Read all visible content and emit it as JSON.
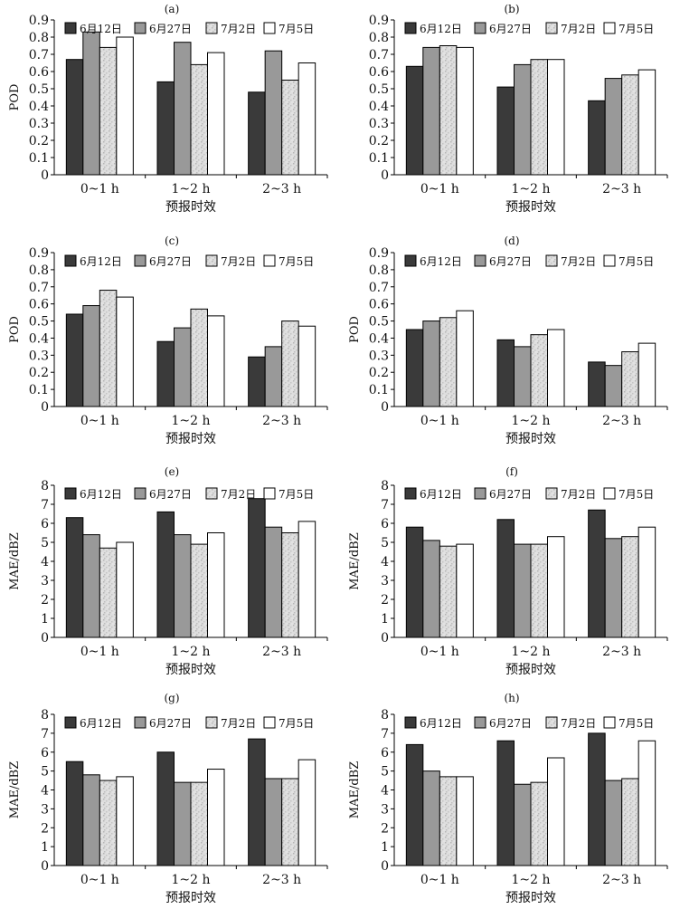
{
  "legend_labels": [
    "6月12日",
    "6月27日",
    "7月2日",
    "7月5日"
  ],
  "categories": [
    "0~1 h",
    "1~2 h",
    "2~3 h"
  ],
  "xlabel": "预报时效",
  "series_colors": [
    "#3a3a3a",
    "#999999",
    "#d9d9d9",
    "#ffffff"
  ],
  "chart_data": [
    {
      "panel": "(a)",
      "type": "bar",
      "ylabel": "POD",
      "ylim": [
        0,
        0.9
      ],
      "yticks": [
        "0",
        "0.1",
        "0.2",
        "0.3",
        "0.4",
        "0.5",
        "0.6",
        "0.7",
        "0.8",
        "0.9"
      ],
      "categories": [
        "0~1 h",
        "1~2 h",
        "2~3 h"
      ],
      "xlabel": "预报时效",
      "series": [
        {
          "name": "6月12日",
          "values": [
            0.67,
            0.54,
            0.48
          ]
        },
        {
          "name": "6月27日",
          "values": [
            0.83,
            0.77,
            0.72
          ]
        },
        {
          "name": "7月2日",
          "values": [
            0.74,
            0.64,
            0.55
          ]
        },
        {
          "name": "7月5日",
          "values": [
            0.8,
            0.71,
            0.65
          ]
        }
      ]
    },
    {
      "panel": "(b)",
      "type": "bar",
      "ylabel": "",
      "ylim": [
        0,
        0.9
      ],
      "yticks": [
        "0",
        "0.1",
        "0.2",
        "0.3",
        "0.4",
        "0.5",
        "0.6",
        "0.7",
        "0.8",
        "0.9"
      ],
      "categories": [
        "0~1 h",
        "1~2 h",
        "2~3 h"
      ],
      "xlabel": "预报时效",
      "series": [
        {
          "name": "6月12日",
          "values": [
            0.63,
            0.51,
            0.43
          ]
        },
        {
          "name": "6月27日",
          "values": [
            0.74,
            0.64,
            0.56
          ]
        },
        {
          "name": "7月2日",
          "values": [
            0.75,
            0.67,
            0.58
          ]
        },
        {
          "name": "7月5日",
          "values": [
            0.74,
            0.67,
            0.61
          ]
        }
      ]
    },
    {
      "panel": "(c)",
      "type": "bar",
      "ylabel": "POD",
      "ylim": [
        0,
        0.9
      ],
      "yticks": [
        "0",
        "0.1",
        "0.2",
        "0.3",
        "0.4",
        "0.5",
        "0.6",
        "0.7",
        "0.8",
        "0.9"
      ],
      "categories": [
        "0~1 h",
        "1~2 h",
        "2~3 h"
      ],
      "xlabel": "预报时效",
      "series": [
        {
          "name": "6月12日",
          "values": [
            0.54,
            0.38,
            0.29
          ]
        },
        {
          "name": "6月27日",
          "values": [
            0.59,
            0.46,
            0.35
          ]
        },
        {
          "name": "7月2日",
          "values": [
            0.68,
            0.57,
            0.5
          ]
        },
        {
          "name": "7月5日",
          "values": [
            0.64,
            0.53,
            0.47
          ]
        }
      ]
    },
    {
      "panel": "(d)",
      "type": "bar",
      "ylabel": "POD",
      "ylim": [
        0,
        0.9
      ],
      "yticks": [
        "0",
        "0.1",
        "0.2",
        "0.3",
        "0.4",
        "0.5",
        "0.6",
        "0.7",
        "0.8",
        "0.9"
      ],
      "categories": [
        "0~1 h",
        "1~2 h",
        "2~3 h"
      ],
      "xlabel": "预报时效",
      "series": [
        {
          "name": "6月12日",
          "values": [
            0.45,
            0.39,
            0.26
          ]
        },
        {
          "name": "6月27日",
          "values": [
            0.5,
            0.35,
            0.24
          ]
        },
        {
          "name": "7月2日",
          "values": [
            0.52,
            0.42,
            0.32
          ]
        },
        {
          "name": "7月5日",
          "values": [
            0.56,
            0.45,
            0.37
          ]
        }
      ]
    },
    {
      "panel": "(e)",
      "type": "bar",
      "ylabel": "MAE/dBZ",
      "ylim": [
        0,
        8
      ],
      "yticks": [
        "0",
        "1",
        "2",
        "3",
        "4",
        "5",
        "6",
        "7",
        "8"
      ],
      "categories": [
        "0~1 h",
        "1~2 h",
        "2~3 h"
      ],
      "xlabel": "预报时效",
      "series": [
        {
          "name": "6月12日",
          "values": [
            6.3,
            6.6,
            7.3
          ]
        },
        {
          "name": "6月27日",
          "values": [
            5.4,
            5.4,
            5.8
          ]
        },
        {
          "name": "7月2日",
          "values": [
            4.7,
            4.9,
            5.5
          ]
        },
        {
          "name": "7月5日",
          "values": [
            5.0,
            5.5,
            6.1
          ]
        }
      ]
    },
    {
      "panel": "(f)",
      "type": "bar",
      "ylabel": "MAE/dBZ",
      "ylim": [
        0,
        8
      ],
      "yticks": [
        "0",
        "1",
        "2",
        "3",
        "4",
        "5",
        "6",
        "7",
        "8"
      ],
      "categories": [
        "0~1 h",
        "1~2 h",
        "2~3 h"
      ],
      "xlabel": "预报时效",
      "series": [
        {
          "name": "6月12日",
          "values": [
            5.8,
            6.2,
            6.7
          ]
        },
        {
          "name": "6月27日",
          "values": [
            5.1,
            4.9,
            5.2
          ]
        },
        {
          "name": "7月2日",
          "values": [
            4.8,
            4.9,
            5.3
          ]
        },
        {
          "name": "7月5日",
          "values": [
            4.9,
            5.3,
            5.8
          ]
        }
      ]
    },
    {
      "panel": "(g)",
      "type": "bar",
      "ylabel": "MAE/dBZ",
      "ylim": [
        0,
        8
      ],
      "yticks": [
        "0",
        "1",
        "2",
        "3",
        "4",
        "5",
        "6",
        "7",
        "8"
      ],
      "categories": [
        "0~1 h",
        "1~2 h",
        "2~3 h"
      ],
      "xlabel": "预报时效",
      "series": [
        {
          "name": "6月12日",
          "values": [
            5.5,
            6.0,
            6.7
          ]
        },
        {
          "name": "6月27日",
          "values": [
            4.8,
            4.4,
            4.6
          ]
        },
        {
          "name": "7月2日",
          "values": [
            4.5,
            4.4,
            4.6
          ]
        },
        {
          "name": "7月5日",
          "values": [
            4.7,
            5.1,
            5.6
          ]
        }
      ]
    },
    {
      "panel": "(h)",
      "type": "bar",
      "ylabel": "MAE/dBZ",
      "ylim": [
        0,
        8
      ],
      "yticks": [
        "0",
        "1",
        "2",
        "3",
        "4",
        "5",
        "6",
        "7",
        "8"
      ],
      "categories": [
        "0~1 h",
        "1~2 h",
        "2~3 h"
      ],
      "xlabel": "预报时效",
      "series": [
        {
          "name": "6月12日",
          "values": [
            6.4,
            6.6,
            7.0
          ]
        },
        {
          "name": "6月27日",
          "values": [
            5.0,
            4.3,
            4.5
          ]
        },
        {
          "name": "7月2日",
          "values": [
            4.7,
            4.4,
            4.6
          ]
        },
        {
          "name": "7月5日",
          "values": [
            4.7,
            5.7,
            6.6
          ]
        }
      ]
    }
  ]
}
